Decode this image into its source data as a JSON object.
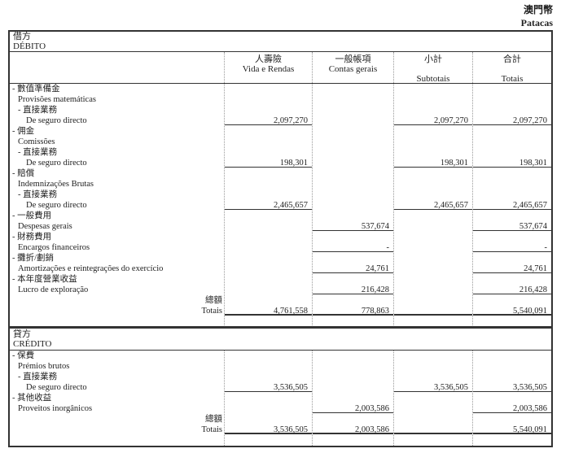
{
  "currency": {
    "zh": "澳門幣",
    "pt": "Patacas"
  },
  "columns": [
    {
      "zh": "人壽險",
      "pt": "Vida e Rendas"
    },
    {
      "zh": "一般帳項",
      "pt": "Contas gerais"
    },
    {
      "zh": "小計",
      "pt": "Subtotais"
    },
    {
      "zh": "合計",
      "pt": "Totais"
    }
  ],
  "debit": {
    "title_zh": "借方",
    "title_pt": "DÉBITO",
    "rows": [
      {
        "text": "- 數值準備金",
        "level": 0
      },
      {
        "text": "Provisões matemáticas",
        "level": 1
      },
      {
        "text": "- 直接業務",
        "level": 1
      },
      {
        "text": "De seguro directo",
        "level": 2,
        "values": [
          "2,097,270",
          "",
          "2,097,270",
          "2,097,270"
        ]
      },
      {
        "text": "- 佣金",
        "level": 0
      },
      {
        "text": "Comissões",
        "level": 1
      },
      {
        "text": "- 直接業務",
        "level": 1
      },
      {
        "text": "De seguro directo",
        "level": 2,
        "values": [
          "198,301",
          "",
          "198,301",
          "198,301"
        ]
      },
      {
        "text": "- 賠償",
        "level": 0
      },
      {
        "text": "Indemnizações Brutas",
        "level": 1
      },
      {
        "text": "- 直接業務",
        "level": 1
      },
      {
        "text": "De seguro directo",
        "level": 2,
        "values": [
          "2,465,657",
          "",
          "2,465,657",
          "2,465,657"
        ]
      },
      {
        "text": "- 一般費用",
        "level": 0
      },
      {
        "text": "Despesas gerais",
        "level": 1,
        "values": [
          "",
          "537,674",
          "",
          "537,674"
        ]
      },
      {
        "text": "- 財務費用",
        "level": 0
      },
      {
        "text": "Encargos financeiros",
        "level": 1,
        "values": [
          "",
          "-",
          "",
          "-"
        ]
      },
      {
        "text": "- 攤折/劃銷",
        "level": 0
      },
      {
        "text": "Amortizações e reintegrações do exercício",
        "level": 1,
        "values": [
          "",
          "24,761",
          "",
          "24,761"
        ]
      },
      {
        "text": "- 本年度營業收益",
        "level": 0
      },
      {
        "text": "Lucro de exploração",
        "level": 1,
        "values": [
          "",
          "216,428",
          "",
          "216,428"
        ]
      },
      {
        "text": "總額",
        "level": "total"
      },
      {
        "text": "Totais",
        "level": "total",
        "total": true,
        "values": [
          "4,761,558",
          "778,863",
          "",
          "5,540,091"
        ]
      }
    ]
  },
  "credit": {
    "title_zh": "貸方",
    "title_pt": "CRÉDITO",
    "rows": [
      {
        "text": "- 保費",
        "level": 0
      },
      {
        "text": "Prémios brutos",
        "level": 1
      },
      {
        "text": "- 直接業務",
        "level": 1
      },
      {
        "text": "De seguro directo",
        "level": 2,
        "values": [
          "3,536,505",
          "",
          "3,536,505",
          "3,536,505"
        ]
      },
      {
        "text": "- 其他收益",
        "level": 0
      },
      {
        "text": "Proveitos inorgânicos",
        "level": 1,
        "values": [
          "",
          "2,003,586",
          "",
          "2,003,586"
        ]
      },
      {
        "text": "總額",
        "level": "total"
      },
      {
        "text": "Totais",
        "level": "total",
        "total": true,
        "values": [
          "3,536,505",
          "2,003,586",
          "",
          "5,540,091"
        ]
      }
    ]
  }
}
